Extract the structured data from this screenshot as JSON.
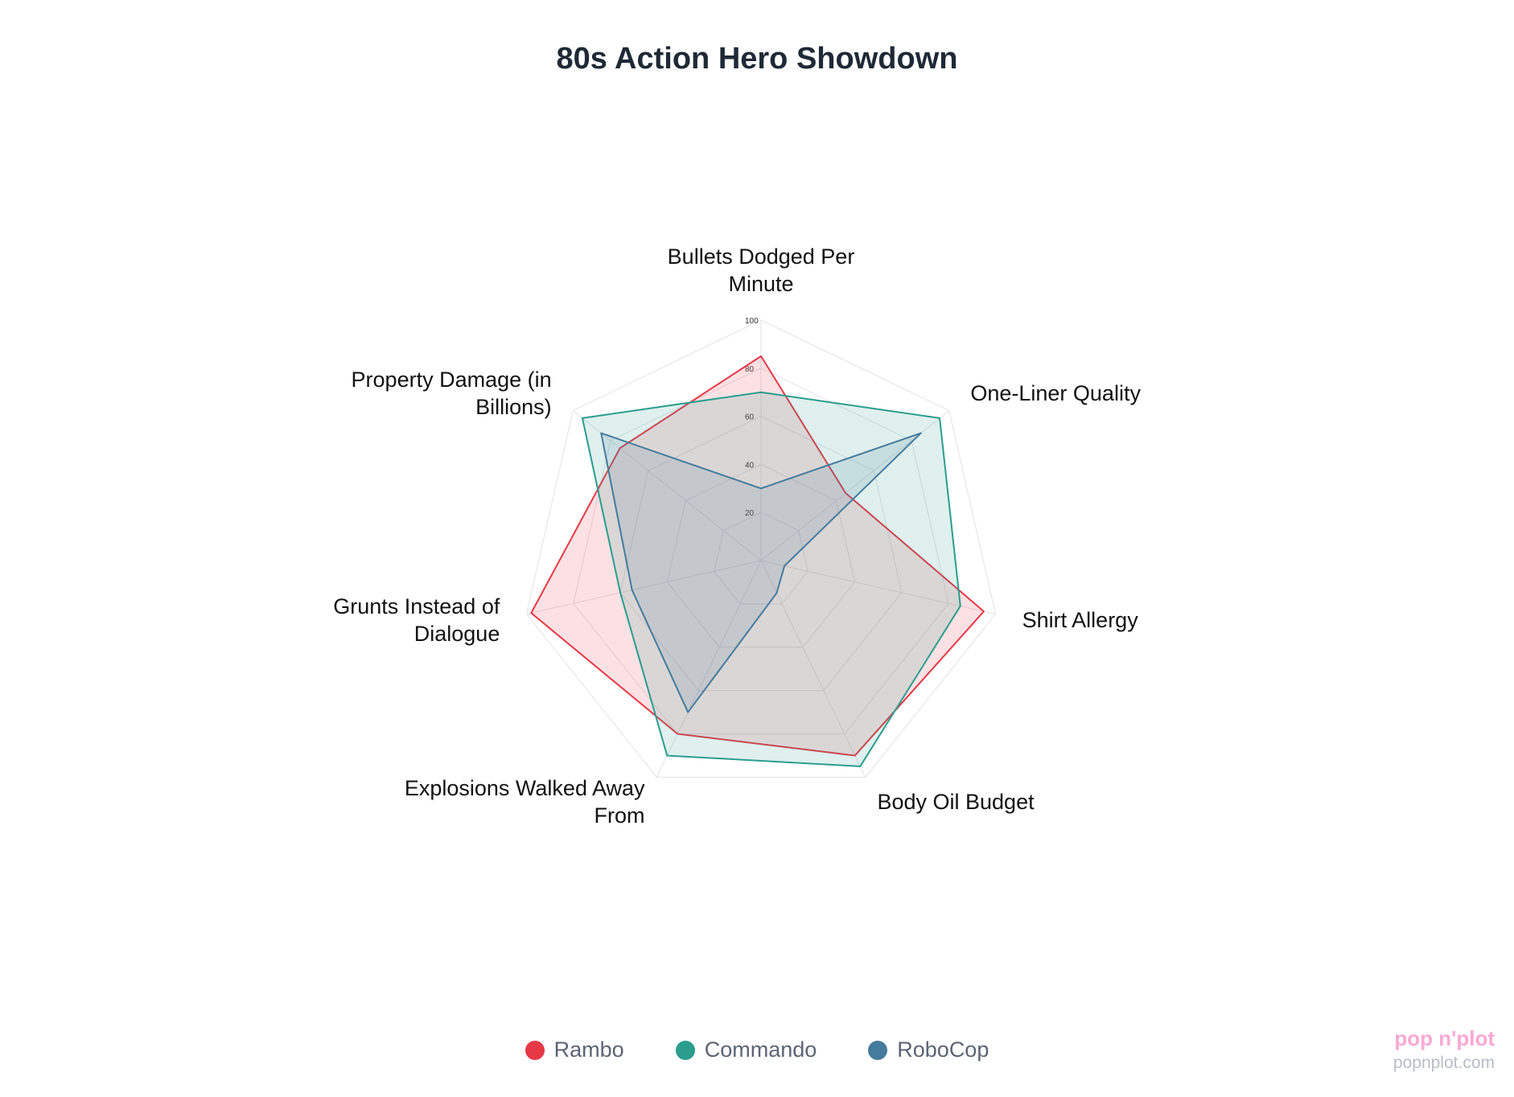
{
  "chart_data": {
    "type": "radar",
    "title": "80s Action Hero Showdown",
    "categories": [
      "Bullets Dodged Per Minute",
      "One-Liner Quality",
      "Shirt Allergy",
      "Body Oil Budget",
      "Explosions Walked Away From",
      "Grunts Instead of Dialogue",
      "Property Damage (in Billions)"
    ],
    "series": [
      {
        "name": "Rambo",
        "color": "#e63946",
        "values": [
          85,
          45,
          95,
          90,
          80,
          98,
          75
        ]
      },
      {
        "name": "Commando",
        "color": "#2a9d8f",
        "values": [
          70,
          95,
          85,
          95,
          90,
          60,
          95
        ]
      },
      {
        "name": "RoboCop",
        "color": "#457b9d",
        "values": [
          30,
          85,
          10,
          15,
          70,
          55,
          85
        ]
      }
    ],
    "rlim": [
      0,
      100
    ],
    "rticks": [
      20,
      40,
      60,
      80,
      100
    ],
    "grid": true,
    "legend": "bottom",
    "watermark": {
      "brand": "pop n'plot",
      "site": "popnplot.com"
    }
  }
}
